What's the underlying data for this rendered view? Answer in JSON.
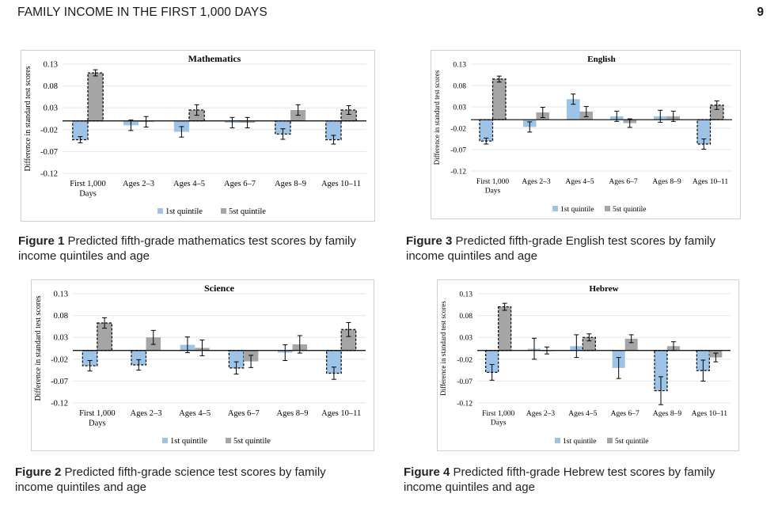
{
  "header": {
    "title": "FAMILY INCOME IN THE FIRST 1,000 DAYS",
    "page_number": "9"
  },
  "colors": {
    "q1": "#9dc3e6",
    "q5": "#a5a5a5",
    "axis": "#000000",
    "grid": "#e6e6e6"
  },
  "legend": {
    "q1": "1st quintile",
    "q5": "5st quintile"
  },
  "ylabel": "Difference in standard test scores",
  "chart_data": [
    {
      "type": "bar",
      "title": "Mathematics",
      "ylabel": "Difference in standard test scores",
      "categories": [
        "First 1,000 Days",
        "Ages 2–3",
        "Ages 4–5",
        "Ages 6–7",
        "Ages 8–9",
        "Ages 10–11"
      ],
      "ylim": [
        -0.12,
        0.13
      ],
      "yticks": [
        "0.13",
        "0.08",
        "0.03",
        "-0.02",
        "-0.07",
        "-0.12"
      ],
      "series": [
        {
          "name": "1st quintile",
          "values": [
            -0.043,
            -0.01,
            -0.025,
            -0.004,
            -0.03,
            -0.043
          ],
          "err": [
            0.007,
            0.012,
            0.012,
            0.012,
            0.012,
            0.01
          ],
          "significant": [
            true,
            false,
            false,
            false,
            true,
            true
          ]
        },
        {
          "name": "5st quintile",
          "values": [
            0.11,
            -0.002,
            0.025,
            -0.004,
            0.025,
            0.025
          ],
          "err": [
            0.007,
            0.012,
            0.012,
            0.012,
            0.012,
            0.01
          ],
          "significant": [
            true,
            false,
            true,
            false,
            false,
            true
          ]
        }
      ]
    },
    {
      "type": "bar",
      "title": "English",
      "ylabel": "Difference in standard test scores",
      "categories": [
        "First 1,000 Days",
        "Ages 2–3",
        "Ages 4–5",
        "Ages 6–7",
        "Ages 8–9",
        "Ages 10–11"
      ],
      "ylim": [
        -0.12,
        0.13
      ],
      "yticks": [
        "0.13",
        "0.08",
        "0.03",
        "-0.02",
        "-0.07",
        "-0.12"
      ],
      "series": [
        {
          "name": "1st quintile",
          "values": [
            -0.05,
            -0.017,
            0.048,
            0.008,
            0.008,
            -0.057
          ],
          "err": [
            0.007,
            0.012,
            0.012,
            0.012,
            0.014,
            0.012
          ],
          "significant": [
            true,
            false,
            false,
            false,
            false,
            true
          ]
        },
        {
          "name": "5st quintile",
          "values": [
            0.095,
            0.017,
            0.019,
            -0.008,
            0.008,
            0.034
          ],
          "err": [
            0.007,
            0.012,
            0.012,
            0.01,
            0.012,
            0.01
          ],
          "significant": [
            true,
            false,
            false,
            false,
            false,
            true
          ]
        }
      ]
    },
    {
      "type": "bar",
      "title": "Science",
      "ylabel": "Difference in standard test scores",
      "categories": [
        "First 1,000 Days",
        "Ages 2–3",
        "Ages 4–5",
        "Ages 6–7",
        "Ages 8–9",
        "Ages 10–11"
      ],
      "ylim": [
        -0.12,
        0.13
      ],
      "yticks": [
        "0.13",
        "0.08",
        "0.03",
        "-0.02",
        "-0.07",
        "-0.12"
      ],
      "series": [
        {
          "name": "1st quintile",
          "values": [
            -0.035,
            -0.033,
            0.013,
            -0.04,
            -0.005,
            -0.052
          ],
          "err": [
            0.012,
            0.012,
            0.018,
            0.014,
            0.018,
            0.014
          ],
          "significant": [
            true,
            true,
            false,
            true,
            false,
            true
          ]
        },
        {
          "name": "5st quintile",
          "values": [
            0.063,
            0.03,
            0.006,
            -0.025,
            0.014,
            0.048
          ],
          "err": [
            0.012,
            0.016,
            0.018,
            0.014,
            0.02,
            0.016
          ],
          "significant": [
            true,
            false,
            false,
            false,
            false,
            true
          ]
        }
      ]
    },
    {
      "type": "bar",
      "title": "Hebrew",
      "ylabel": "Difference in standard test scores",
      "categories": [
        "First 1,000 Days",
        "Ages 2–3",
        "Ages 4–5",
        "Ages 6–7",
        "Ages 8–9",
        "Ages 10–11"
      ],
      "ylim": [
        -0.12,
        0.13
      ],
      "yticks": [
        "0.13",
        "0.08",
        "0.03",
        "-0.02",
        "-0.07",
        "-0.12"
      ],
      "series": [
        {
          "name": "1st quintile",
          "values": [
            -0.05,
            0.004,
            0.01,
            -0.04,
            -0.092,
            -0.046
          ],
          "err": [
            0.018,
            0.024,
            0.026,
            0.024,
            0.032,
            0.024
          ],
          "significant": [
            true,
            false,
            false,
            false,
            true,
            true
          ]
        },
        {
          "name": "5st quintile",
          "values": [
            0.1,
            0.0,
            0.03,
            0.027,
            0.01,
            -0.016
          ],
          "err": [
            0.008,
            0.008,
            0.008,
            0.009,
            0.01,
            0.01
          ],
          "significant": [
            true,
            false,
            true,
            false,
            false,
            false
          ]
        }
      ]
    }
  ],
  "captions": [
    {
      "label": "Figure 1",
      "text": " Predicted fifth-grade mathematics test scores by family income quintiles and age"
    },
    {
      "label": "Figure 2",
      "text": " Predicted fifth-grade science test scores by family income quintiles and age"
    },
    {
      "label": "Figure 3",
      "text": " Predicted fifth-grade English test scores by family income quintiles and age"
    },
    {
      "label": "Figure 4",
      "text": " Predicted fifth-grade Hebrew test scores by family income quintiles and age"
    }
  ]
}
